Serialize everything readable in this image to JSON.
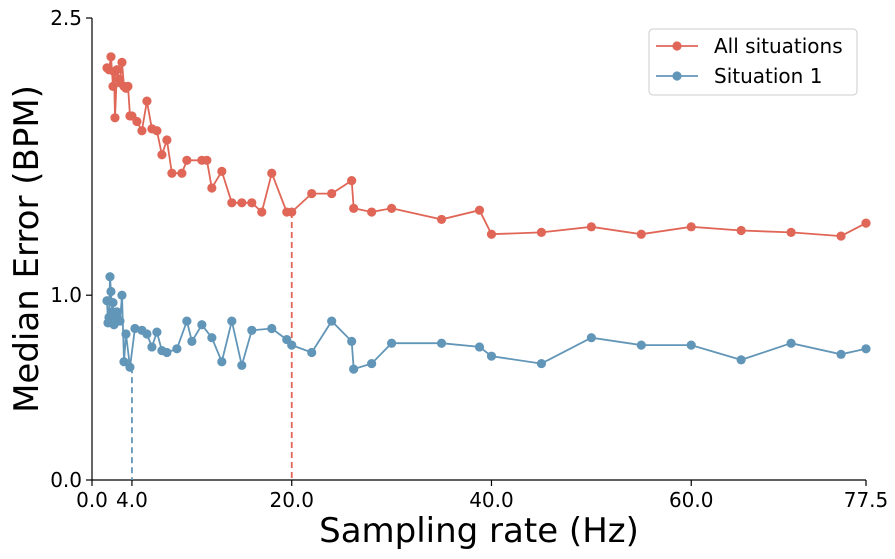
{
  "chart_data": {
    "type": "line",
    "title": "",
    "xlabel": "Sampling rate (Hz)",
    "ylabel": "Median Error (BPM)",
    "xlim": [
      0.0,
      77.5
    ],
    "ylim": [
      0.0,
      2.5
    ],
    "xticks": [
      0.0,
      4.0,
      20.0,
      40.0,
      60.0,
      77.5
    ],
    "xtick_labels": [
      "0.0",
      "4.0",
      "20.0",
      "40.0",
      "60.0",
      "77.5"
    ],
    "yticks": [
      0.0,
      1.0,
      2.5
    ],
    "ytick_labels": [
      "0.0",
      "1.0",
      "2.5"
    ],
    "grid": false,
    "legend_position": "top-right",
    "series": [
      {
        "name": "All situations",
        "color": "#e06657",
        "x": [
          1.5,
          1.7,
          1.9,
          2.1,
          2.2,
          2.3,
          2.5,
          2.7,
          2.8,
          3.0,
          3.2,
          3.4,
          3.6,
          3.8,
          4.0,
          4.5,
          5.0,
          5.5,
          6.0,
          6.5,
          7.0,
          7.5,
          8.0,
          9.0,
          9.5,
          11.0,
          11.5,
          12.0,
          13.0,
          14.0,
          15.0,
          16.0,
          17.0,
          18.0,
          19.5,
          20.0,
          22.0,
          24.0,
          26.0,
          26.2,
          28.0,
          30.0,
          35.0,
          38.8,
          40.0,
          45.0,
          50.0,
          55.0,
          60.0,
          65.0,
          70.0,
          75.0,
          77.5
        ],
        "values": [
          2.23,
          2.22,
          2.29,
          2.13,
          2.21,
          1.96,
          2.22,
          2.17,
          2.15,
          2.26,
          2.13,
          2.12,
          2.13,
          1.97,
          1.97,
          1.94,
          1.89,
          2.05,
          1.9,
          1.89,
          1.76,
          1.84,
          1.66,
          1.66,
          1.73,
          1.73,
          1.73,
          1.58,
          1.67,
          1.5,
          1.5,
          1.5,
          1.45,
          1.66,
          1.45,
          1.45,
          1.55,
          1.55,
          1.62,
          1.47,
          1.45,
          1.47,
          1.41,
          1.46,
          1.33,
          1.34,
          1.37,
          1.33,
          1.37,
          1.35,
          1.34,
          1.32,
          1.39
        ]
      },
      {
        "name": "Situation 1",
        "color": "#6296b8",
        "x": [
          1.5,
          1.6,
          1.7,
          1.8,
          1.9,
          2.0,
          2.1,
          2.2,
          2.3,
          2.4,
          2.5,
          2.6,
          2.8,
          3.0,
          3.2,
          3.4,
          3.8,
          4.3,
          5.0,
          5.5,
          6.0,
          6.5,
          7.0,
          7.5,
          8.5,
          9.5,
          10.0,
          11.0,
          12.0,
          13.0,
          14.0,
          15.0,
          16.0,
          18.0,
          19.5,
          20.0,
          22.0,
          24.0,
          26.0,
          26.2,
          28.0,
          30.0,
          35.0,
          38.8,
          40.0,
          45.0,
          50.0,
          55.0,
          60.0,
          65.0,
          70.0,
          75.0,
          77.5
        ],
        "values": [
          0.97,
          0.85,
          0.88,
          1.1,
          1.02,
          0.91,
          0.96,
          0.84,
          0.9,
          0.88,
          0.91,
          0.87,
          0.86,
          1.0,
          0.64,
          0.79,
          0.61,
          0.82,
          0.81,
          0.79,
          0.72,
          0.8,
          0.7,
          0.69,
          0.71,
          0.86,
          0.75,
          0.84,
          0.77,
          0.64,
          0.86,
          0.62,
          0.81,
          0.82,
          0.76,
          0.73,
          0.69,
          0.86,
          0.75,
          0.6,
          0.63,
          0.74,
          0.74,
          0.72,
          0.67,
          0.63,
          0.77,
          0.73,
          0.73,
          0.65,
          0.74,
          0.68,
          0.71
        ]
      }
    ],
    "reference_lines": [
      {
        "series": "Situation 1",
        "x": 4.0,
        "y": 0.61,
        "style": "dashed",
        "color": "#6296b8"
      },
      {
        "series": "All situations",
        "x": 20.0,
        "y": 1.45,
        "style": "dashed",
        "color": "#e06657"
      }
    ]
  }
}
